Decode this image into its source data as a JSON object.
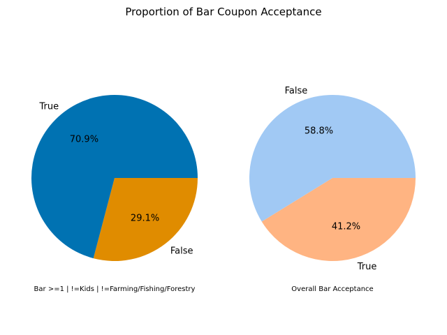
{
  "figure": {
    "title": "Proportion of Bar Coupon Acceptance"
  },
  "chart_data": [
    {
      "type": "pie",
      "caption": "Bar >=1 | !=Kids | !=Farming/Fishing/Forestry",
      "slices": [
        {
          "label": "True",
          "value": 70.9,
          "percent_text": "70.9%",
          "color": "#0072b2"
        },
        {
          "label": "False",
          "value": 29.1,
          "percent_text": "29.1%",
          "color": "#e08c00"
        }
      ]
    },
    {
      "type": "pie",
      "caption": "Overall Bar Acceptance",
      "slices": [
        {
          "label": "False",
          "value": 58.8,
          "percent_text": "58.8%",
          "color": "#a1c9f4"
        },
        {
          "label": "True",
          "value": 41.2,
          "percent_text": "41.2%",
          "color": "#ffb482"
        }
      ]
    }
  ]
}
